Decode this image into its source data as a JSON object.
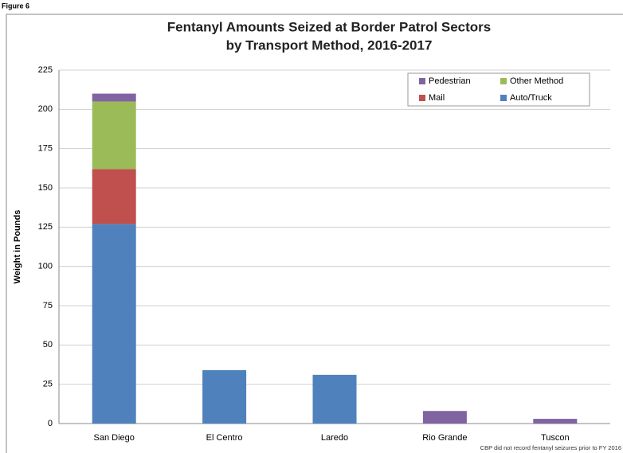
{
  "figure_label": "Figure 6",
  "chart_data": {
    "type": "stacked_bar",
    "title": [
      "Fentanyl Amounts Seized at Border Patrol Sectors",
      "by Transport Method, 2016-2017"
    ],
    "y_label": "Weight in Pounds",
    "note": "CBP did not record fentanyl seizures prior to FY 2016",
    "categories": [
      "San Diego",
      "El Centro",
      "Laredo",
      "Rio Grande",
      "Tuscon"
    ],
    "series": [
      {
        "name": "Auto/Truck",
        "color": "#4f81bd",
        "values": [
          127,
          34,
          31,
          null,
          null
        ]
      },
      {
        "name": "Mail",
        "color": "#c0504d",
        "values": [
          35,
          null,
          null,
          null,
          null
        ]
      },
      {
        "name": "Other Method",
        "color": "#9bbb59",
        "values": [
          43,
          null,
          null,
          null,
          null
        ]
      },
      {
        "name": "Pedestrian",
        "color": "#8064a2",
        "values": [
          5,
          null,
          null,
          8,
          3
        ]
      }
    ],
    "ylim": [
      0,
      225
    ],
    "yticks": [
      0,
      25,
      50,
      75,
      100,
      125,
      150,
      175,
      200,
      225
    ],
    "grid": true,
    "legend": "upper right"
  }
}
